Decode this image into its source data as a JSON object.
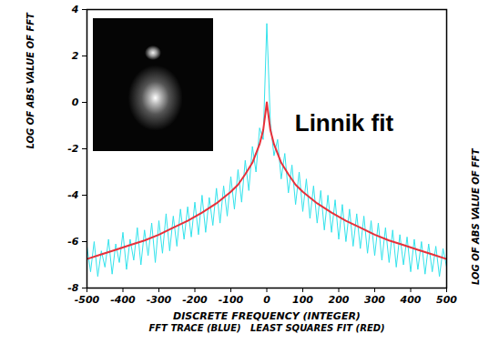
{
  "chart_data": {
    "type": "line",
    "xlabel": "DISCRETE FREQUENCY (INTEGER)",
    "ylabel": "LOG OF ABS VALUE OF FFT",
    "caption": "FFT TRACE (BLUE)   LEAST SQUARES FIT (RED)",
    "annotations": [
      {
        "text": "Linnik fit",
        "x": 215,
        "y": -0.9
      }
    ],
    "xlim": [
      -500,
      500
    ],
    "xticks": [
      -500,
      -400,
      -300,
      -200,
      -100,
      0,
      100,
      200,
      300,
      400,
      500
    ],
    "ylim": [
      -8,
      4
    ],
    "yticks": [
      -8,
      -6,
      -4,
      -2,
      0,
      2,
      4
    ],
    "grid": false,
    "series": [
      {
        "color": "#33e3ec",
        "x": [
          -500,
          -490,
          -480,
          -470,
          -460,
          -450,
          -440,
          -430,
          -420,
          -410,
          -400,
          -390,
          -380,
          -370,
          -360,
          -350,
          -340,
          -330,
          -320,
          -310,
          -300,
          -290,
          -280,
          -270,
          -260,
          -250,
          -240,
          -230,
          -220,
          -210,
          -200,
          -190,
          -180,
          -170,
          -160,
          -150,
          -140,
          -130,
          -120,
          -110,
          -100,
          -90,
          -80,
          -70,
          -60,
          -50,
          -40,
          -30,
          -20,
          -10,
          0,
          10,
          20,
          30,
          40,
          50,
          60,
          70,
          80,
          90,
          100,
          110,
          120,
          130,
          140,
          150,
          160,
          170,
          180,
          190,
          200,
          210,
          220,
          230,
          240,
          250,
          260,
          270,
          280,
          290,
          300,
          310,
          320,
          330,
          340,
          350,
          360,
          370,
          380,
          390,
          400,
          410,
          420,
          430,
          440,
          450,
          460,
          470,
          480,
          490,
          500
        ],
        "values": [
          -6.2,
          -7.3,
          -6.0,
          -7.5,
          -6.4,
          -7.1,
          -5.9,
          -7.4,
          -6.1,
          -6.9,
          -5.6,
          -7.2,
          -5.9,
          -6.8,
          -5.4,
          -7.0,
          -5.5,
          -6.6,
          -5.2,
          -6.9,
          -5.1,
          -6.5,
          -4.8,
          -6.4,
          -4.9,
          -6.2,
          -4.6,
          -5.9,
          -4.5,
          -5.8,
          -4.3,
          -5.7,
          -4.0,
          -5.6,
          -4.1,
          -5.3,
          -3.7,
          -5.2,
          -3.6,
          -4.9,
          -3.2,
          -4.6,
          -2.9,
          -4.3,
          -2.5,
          -3.8,
          -1.9,
          -3.0,
          -1.1,
          -1.6,
          3.4,
          -0.9,
          -2.3,
          -1.6,
          -3.3,
          -2.2,
          -3.9,
          -2.7,
          -4.4,
          -3.0,
          -4.7,
          -3.3,
          -5.0,
          -3.6,
          -5.2,
          -3.8,
          -5.5,
          -4.0,
          -5.6,
          -4.2,
          -5.9,
          -4.4,
          -6.0,
          -4.6,
          -6.2,
          -4.8,
          -6.3,
          -4.9,
          -6.5,
          -5.1,
          -6.6,
          -5.2,
          -6.8,
          -5.4,
          -6.9,
          -5.5,
          -7.1,
          -5.7,
          -7.0,
          -5.8,
          -7.3,
          -5.9,
          -7.2,
          -6.0,
          -7.4,
          -6.1,
          -7.3,
          -6.2,
          -7.5,
          -6.3,
          -7.1
        ]
      },
      {
        "color": "#e8303a",
        "x": [
          -500,
          -460,
          -420,
          -380,
          -340,
          -300,
          -260,
          -220,
          -180,
          -140,
          -100,
          -80,
          -60,
          -40,
          -20,
          -10,
          0,
          10,
          20,
          40,
          60,
          80,
          100,
          140,
          180,
          220,
          260,
          300,
          340,
          380,
          420,
          460,
          500
        ],
        "values": [
          -6.75,
          -6.55,
          -6.35,
          -6.15,
          -5.95,
          -5.7,
          -5.4,
          -5.1,
          -4.75,
          -4.35,
          -3.85,
          -3.55,
          -3.1,
          -2.6,
          -1.8,
          -1.2,
          0,
          -1.2,
          -1.8,
          -2.6,
          -3.1,
          -3.55,
          -3.85,
          -4.35,
          -4.75,
          -5.1,
          -5.4,
          -5.7,
          -5.95,
          -6.15,
          -6.35,
          -6.55,
          -6.75
        ]
      }
    ]
  }
}
